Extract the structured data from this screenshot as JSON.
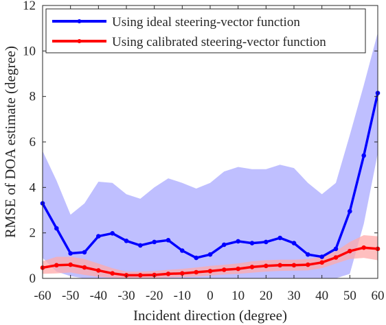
{
  "chart_data": {
    "type": "line",
    "xlabel": "Incident direction (degree)",
    "ylabel": "RMSE of DOA estimate (degree)",
    "xlim": [
      -60,
      60
    ],
    "ylim": [
      0,
      12
    ],
    "x_ticks": [
      -60,
      -50,
      -40,
      -30,
      -20,
      -10,
      0,
      10,
      20,
      30,
      40,
      50,
      60
    ],
    "y_ticks": [
      0,
      2,
      4,
      6,
      8,
      10,
      12
    ],
    "x": [
      -60,
      -55,
      -50,
      -45,
      -40,
      -35,
      -30,
      -25,
      -20,
      -15,
      -10,
      -5,
      0,
      5,
      10,
      15,
      20,
      25,
      30,
      35,
      40,
      45,
      50,
      55,
      60
    ],
    "grid": false,
    "legend_position": "top",
    "series": [
      {
        "name": "Using ideal steering-vector function",
        "color": "#0000ff",
        "band_color": "#aaaaff",
        "values": [
          3.3,
          2.2,
          1.1,
          1.15,
          1.85,
          1.98,
          1.65,
          1.45,
          1.6,
          1.68,
          1.22,
          0.9,
          1.05,
          1.48,
          1.63,
          1.55,
          1.6,
          1.78,
          1.55,
          1.05,
          0.95,
          1.3,
          2.95,
          5.4,
          8.15
        ],
        "band_upper": [
          5.6,
          4.3,
          2.8,
          3.3,
          4.25,
          4.2,
          3.7,
          3.5,
          4.0,
          4.4,
          4.2,
          3.95,
          4.2,
          4.7,
          4.9,
          4.8,
          4.8,
          5.0,
          4.85,
          4.2,
          3.7,
          4.2,
          6.3,
          8.5,
          10.8
        ],
        "band_lower": [
          0.9,
          0.3,
          0.1,
          0.0,
          0.0,
          0.0,
          0.0,
          0.0,
          0.0,
          0.0,
          0.0,
          0.0,
          0.0,
          0.0,
          0.0,
          0.0,
          0.0,
          0.0,
          0.0,
          0.0,
          0.0,
          0.0,
          0.2,
          2.4,
          5.5
        ]
      },
      {
        "name": "Using calibrated steering-vector function",
        "color": "#ff0000",
        "band_color": "#ffaaaa",
        "values": [
          0.47,
          0.58,
          0.6,
          0.48,
          0.35,
          0.22,
          0.14,
          0.14,
          0.15,
          0.2,
          0.22,
          0.27,
          0.32,
          0.38,
          0.42,
          0.5,
          0.55,
          0.58,
          0.58,
          0.6,
          0.7,
          0.92,
          1.2,
          1.35,
          1.3
        ],
        "band_upper": [
          0.75,
          0.95,
          0.95,
          0.85,
          0.65,
          0.45,
          0.3,
          0.3,
          0.32,
          0.38,
          0.42,
          0.48,
          0.55,
          0.6,
          0.66,
          0.75,
          0.8,
          0.82,
          0.82,
          0.85,
          0.95,
          1.2,
          1.6,
          1.9,
          1.85
        ],
        "band_lower": [
          0.2,
          0.22,
          0.26,
          0.15,
          0.07,
          0.03,
          0.01,
          0.01,
          0.01,
          0.04,
          0.05,
          0.08,
          0.12,
          0.17,
          0.2,
          0.25,
          0.3,
          0.33,
          0.34,
          0.35,
          0.45,
          0.65,
          0.85,
          0.9,
          0.8
        ]
      }
    ]
  }
}
